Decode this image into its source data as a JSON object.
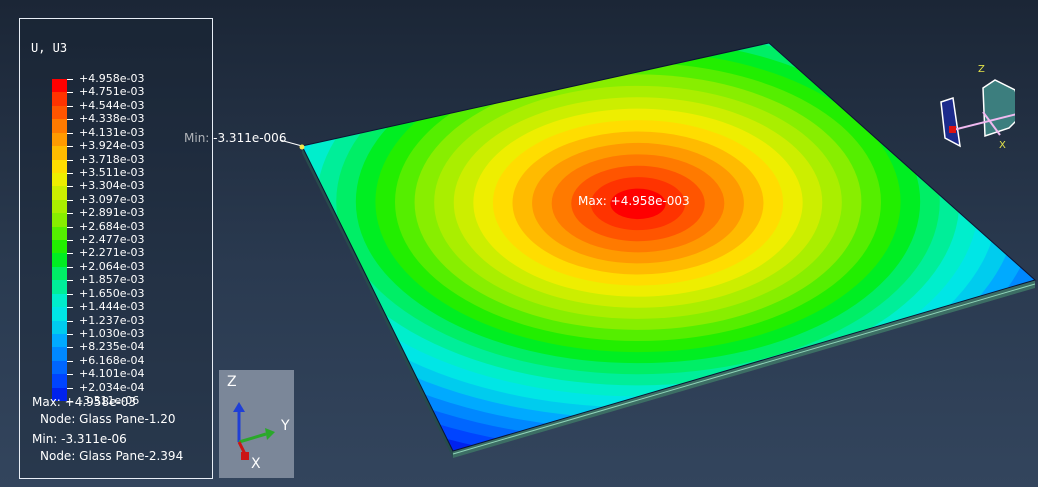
{
  "legend": {
    "title": "U, U3",
    "labels": [
      "+4.958e-03",
      "+4.751e-03",
      "+4.544e-03",
      "+4.338e-03",
      "+4.131e-03",
      "+3.924e-03",
      "+3.718e-03",
      "+3.511e-03",
      "+3.304e-03",
      "+3.097e-03",
      "+2.891e-03",
      "+2.684e-03",
      "+2.477e-03",
      "+2.271e-03",
      "+2.064e-03",
      "+1.857e-03",
      "+1.650e-03",
      "+1.444e-03",
      "+1.237e-03",
      "+1.030e-03",
      "+8.235e-04",
      "+6.168e-04",
      "+4.101e-04",
      "+2.034e-04",
      "-3.311e-06"
    ],
    "colors": [
      "#ff0000",
      "#ff3300",
      "#ff5500",
      "#ff7a00",
      "#ff9a00",
      "#ffbb00",
      "#ffdd00",
      "#eeee00",
      "#ccee00",
      "#aaee00",
      "#88ee00",
      "#55ee00",
      "#22ee00",
      "#00ee22",
      "#00ee66",
      "#00ee99",
      "#00eecc",
      "#00e6e6",
      "#00ccee",
      "#00aaff",
      "#0088ff",
      "#0066ff",
      "#0044ff",
      "#0022ee"
    ],
    "max_line": "Max: +4.958e-03",
    "max_node": "Node: Glass Pane-1.20",
    "min_line": "Min: -3.311e-06",
    "min_node": "Node: Glass Pane-2.394"
  },
  "viewport": {
    "min_marker": "Min: -3.311e-006",
    "max_marker": "Max: +4.958e-003"
  },
  "triad": {
    "z_label": "Z",
    "y_label": "Y",
    "x_label": "X",
    "z_color": "#1f3fd6",
    "y_color": "#2aa82a",
    "x_color": "#cc1414"
  },
  "view_cube": {
    "z_label": "Z",
    "x_label": "X"
  }
}
